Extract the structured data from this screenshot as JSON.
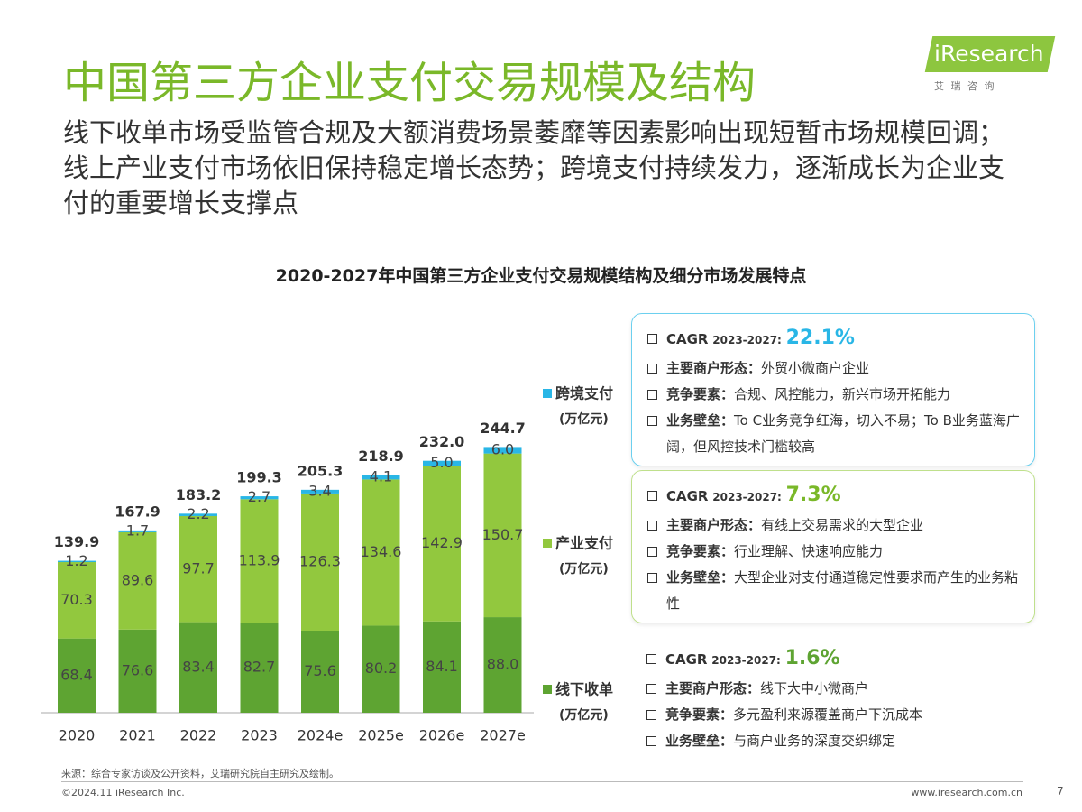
{
  "header": {
    "title": "中国第三方企业支付交易规模及结构",
    "subtitle": "线下收单市场受监管合规及大额消费场景萎靡等因素影响出现短暂市场规模回调；线上产业支付市场依旧保持稳定增长态势；跨境支付持续发力，逐渐成长为企业支付的重要增长支撑点",
    "logo": "iResearch",
    "logo_sub": "艾 瑞 咨 询"
  },
  "chart_data": {
    "type": "stacked-bar",
    "title": "2020-2027年中国第三方企业支付交易规模结构及细分市场发展特点",
    "categories": [
      "2020",
      "2021",
      "2022",
      "2023",
      "2024e",
      "2025e",
      "2026e",
      "2027e"
    ],
    "series": [
      {
        "name": "线下收单",
        "unit": "(万亿元)",
        "color": "#5ea432",
        "values": [
          68.4,
          76.6,
          83.4,
          82.7,
          75.6,
          80.2,
          84.1,
          88.0
        ],
        "value_labels": [
          "68.4",
          "76.6",
          "83.4",
          "82.7",
          "75.6",
          "80.2",
          "84.1",
          "88.0"
        ]
      },
      {
        "name": "产业支付",
        "unit": "(万亿元)",
        "color": "#92c83e",
        "values": [
          70.3,
          89.6,
          97.7,
          113.9,
          126.3,
          134.6,
          142.9,
          150.7
        ],
        "value_labels": [
          "70.3",
          "89.6",
          "97.7",
          "113.9",
          "126.3",
          "134.6",
          "142.9",
          "150.7"
        ]
      },
      {
        "name": "跨境支付",
        "unit": "(万亿元)",
        "color": "#29b6e6",
        "values": [
          1.2,
          1.7,
          2.2,
          2.7,
          3.4,
          4.1,
          5.0,
          6.0
        ],
        "value_labels": [
          "1.2",
          "1.7",
          "2.2",
          "2.7",
          "3.4",
          "4.1",
          "5.0",
          "6.0"
        ]
      }
    ],
    "stack_totals": {
      "values": [
        139.9,
        167.9,
        183.2,
        199.3,
        205.3,
        218.9,
        232.0,
        244.7
      ],
      "value_labels": [
        "139.9",
        "167.9",
        "183.2",
        "199.3",
        "205.3",
        "218.9",
        "232.0",
        "244.7"
      ]
    },
    "ylim": [
      0,
      260
    ]
  },
  "panels": [
    {
      "cagr_label": "CAGR",
      "cagr_period": "2023-2027:",
      "cagr_value": "22.1%",
      "color": "#29b6e6",
      "border": "#6cd0ef",
      "items": [
        {
          "key": "主要商户形态：",
          "text": "外贸小微商户企业"
        },
        {
          "key": "竞争要素：",
          "text": "合规、风控能力，新兴市场开拓能力"
        },
        {
          "key": "业务壁垒：",
          "text": "To C业务竞争红海，切入不易；To B业务蓝海广阔，但风控技术门槛较高"
        }
      ]
    },
    {
      "cagr_label": "CAGR",
      "cagr_period": "2023-2027:",
      "cagr_value": "7.3%",
      "color": "#7ab829",
      "border": "#bfe08c",
      "items": [
        {
          "key": "主要商户形态：",
          "text": "有线上交易需求的大型企业"
        },
        {
          "key": "竞争要素：",
          "text": "行业理解、快速响应能力"
        },
        {
          "key": "业务壁垒：",
          "text": "大型企业对支付通道稳定性要求而产生的业务粘性"
        }
      ]
    },
    {
      "cagr_label": "CAGR",
      "cagr_period": "2023-2027:",
      "cagr_value": "1.6%",
      "color": "#5ea432",
      "items": [
        {
          "key": "主要商户形态：",
          "text": "线下大中小微商户"
        },
        {
          "key": "竞争要素：",
          "text": "多元盈利来源覆盖商户下沉成本"
        },
        {
          "key": "业务壁垒：",
          "text": "与商户业务的深度交织绑定"
        }
      ]
    }
  ],
  "footer": {
    "source": "来源：综合专家访谈及公开资料，艾瑞研究院自主研究及绘制。",
    "copyright": "©2024.11 iResearch Inc.",
    "url": "www.iresearch.com.cn",
    "page": "7"
  }
}
